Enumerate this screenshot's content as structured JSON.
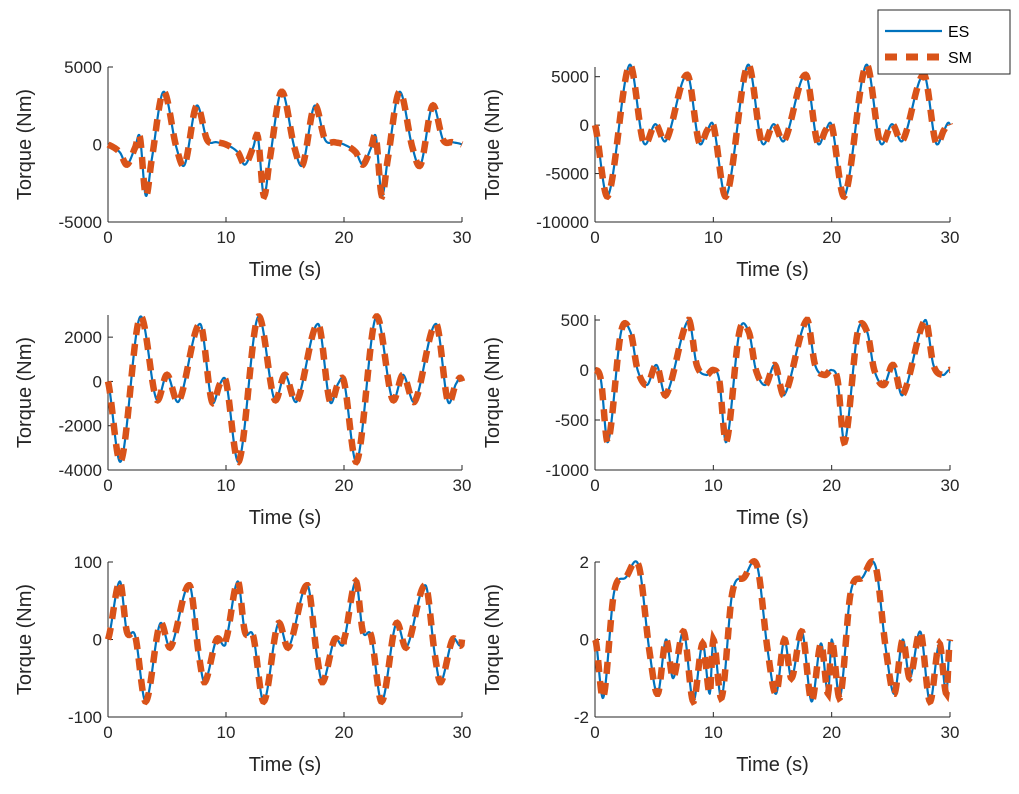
{
  "legend": {
    "placement": "top-right",
    "entries": [
      {
        "label": "ES",
        "color": "#0072BD",
        "style": "solid"
      },
      {
        "label": "SM",
        "color": "#D95319",
        "style": "dashed"
      }
    ]
  },
  "chart_data": [
    {
      "type": "line",
      "title": "",
      "xlabel": "Time (s)",
      "ylabel": "Torque (Nm)",
      "xlim": [
        0,
        30
      ],
      "ylim": [
        -5000,
        5000
      ],
      "xticks": [
        "0",
        "10",
        "20",
        "30"
      ],
      "yticks": [
        "-5000",
        "0",
        "5000"
      ],
      "grid": false,
      "period": 10,
      "knots": [
        [
          0,
          0
        ],
        [
          1,
          -500
        ],
        [
          1.6,
          -1300
        ],
        [
          2.3,
          -200
        ],
        [
          2.7,
          500
        ],
        [
          3.2,
          -3300
        ],
        [
          3.7,
          -1000
        ],
        [
          4.7,
          3400
        ],
        [
          5.8,
          -200
        ],
        [
          6.5,
          -1300
        ],
        [
          7.5,
          2500
        ],
        [
          8.4,
          300
        ],
        [
          9.2,
          150
        ],
        [
          10,
          0
        ]
      ],
      "series": [
        {
          "name": "ES",
          "color": "#0072BD",
          "style": "solid"
        },
        {
          "name": "SM",
          "color": "#D95319",
          "style": "dashed"
        }
      ]
    },
    {
      "type": "line",
      "title": "",
      "xlabel": "Time (s)",
      "ylabel": "Torque (Nm)",
      "xlim": [
        0,
        30
      ],
      "ylim": [
        -10000,
        6000
      ],
      "xticks": [
        "0",
        "10",
        "20",
        "30"
      ],
      "yticks": [
        "-10000",
        "-5000",
        "0",
        "5000"
      ],
      "grid": false,
      "period": 10,
      "knots": [
        [
          0,
          0
        ],
        [
          1.1,
          -7300
        ],
        [
          2.9,
          6200
        ],
        [
          4.1,
          -1800
        ],
        [
          5.1,
          100
        ],
        [
          6,
          -1600
        ],
        [
          7.8,
          5200
        ],
        [
          8.8,
          -1800
        ],
        [
          9.5,
          -500
        ],
        [
          10,
          0
        ]
      ],
      "series": [
        {
          "name": "ES",
          "color": "#0072BD",
          "style": "solid"
        },
        {
          "name": "SM",
          "color": "#D95319",
          "style": "dashed"
        }
      ]
    },
    {
      "type": "line",
      "title": "",
      "xlabel": "Time (s)",
      "ylabel": "Torque (Nm)",
      "xlim": [
        0,
        30
      ],
      "ylim": [
        -4000,
        3000
      ],
      "xticks": [
        "0",
        "10",
        "20",
        "30"
      ],
      "yticks": [
        "-4000",
        "-2000",
        "0",
        "2000"
      ],
      "grid": false,
      "period": 10,
      "knots": [
        [
          0,
          0
        ],
        [
          1.1,
          -3600
        ],
        [
          2.7,
          2900
        ],
        [
          4.1,
          -800
        ],
        [
          5,
          300
        ],
        [
          6,
          -900
        ],
        [
          7.8,
          2600
        ],
        [
          8.8,
          -900
        ],
        [
          9.5,
          -100
        ],
        [
          10,
          0
        ]
      ],
      "series": [
        {
          "name": "ES",
          "color": "#0072BD",
          "style": "solid"
        },
        {
          "name": "SM",
          "color": "#D95319",
          "style": "dashed"
        }
      ]
    },
    {
      "type": "line",
      "title": "",
      "xlabel": "Time (s)",
      "ylabel": "Torque (Nm)",
      "xlim": [
        0,
        30
      ],
      "ylim": [
        -1000,
        550
      ],
      "xticks": [
        "0",
        "10",
        "20",
        "30"
      ],
      "yticks": [
        "-1000",
        "-500",
        "0",
        "500"
      ],
      "grid": false,
      "period": 10,
      "knots": [
        [
          0,
          0
        ],
        [
          0.5,
          -100
        ],
        [
          1.1,
          -720
        ],
        [
          2.2,
          380
        ],
        [
          3,
          380
        ],
        [
          3.6,
          0
        ],
        [
          4.4,
          -150
        ],
        [
          5.2,
          50
        ],
        [
          6,
          -250
        ],
        [
          7.9,
          500
        ],
        [
          8.6,
          50
        ],
        [
          9.4,
          -50
        ],
        [
          10,
          0
        ]
      ],
      "series": [
        {
          "name": "ES",
          "color": "#0072BD",
          "style": "solid"
        },
        {
          "name": "SM",
          "color": "#D95319",
          "style": "dashed"
        }
      ]
    },
    {
      "type": "line",
      "title": "",
      "xlabel": "Time (s)",
      "ylabel": "Torque (Nm)",
      "xlim": [
        0,
        30
      ],
      "ylim": [
        -100,
        100
      ],
      "xticks": [
        "0",
        "10",
        "20",
        "30"
      ],
      "yticks": [
        "-100",
        "0",
        "100"
      ],
      "grid": false,
      "period": 10,
      "knots": [
        [
          0,
          0
        ],
        [
          1,
          75
        ],
        [
          1.6,
          10
        ],
        [
          2.3,
          5
        ],
        [
          3.2,
          -80
        ],
        [
          4.4,
          20
        ],
        [
          5.3,
          -10
        ],
        [
          6.9,
          70
        ],
        [
          7.7,
          -20
        ],
        [
          8.2,
          -55
        ],
        [
          9.2,
          0
        ],
        [
          10,
          -5
        ]
      ],
      "series": [
        {
          "name": "ES",
          "color": "#0072BD",
          "style": "solid"
        },
        {
          "name": "SM",
          "color": "#D95319",
          "style": "dashed"
        }
      ]
    },
    {
      "type": "line",
      "title": "",
      "xlabel": "Time (s)",
      "ylabel": "Torque (Nm)",
      "xlim": [
        0,
        30
      ],
      "ylim": [
        -2,
        2
      ],
      "xticks": [
        "0",
        "10",
        "20",
        "30"
      ],
      "yticks": [
        "-2",
        "0",
        "2"
      ],
      "grid": false,
      "period": 10,
      "knots": [
        [
          0,
          0
        ],
        [
          0.7,
          -1.5
        ],
        [
          1.6,
          1.2
        ],
        [
          2.6,
          1.6
        ],
        [
          3.7,
          1.9
        ],
        [
          4.6,
          -0.3
        ],
        [
          5.3,
          -1.4
        ],
        [
          6,
          0
        ],
        [
          6.6,
          -1
        ],
        [
          7.5,
          0.2
        ],
        [
          8.3,
          -1.6
        ],
        [
          9.1,
          -0.1
        ],
        [
          9.7,
          -1.4
        ],
        [
          10,
          0
        ]
      ],
      "series": [
        {
          "name": "ES",
          "color": "#0072BD",
          "style": "solid"
        },
        {
          "name": "SM",
          "color": "#D95319",
          "style": "dashed"
        }
      ]
    }
  ]
}
